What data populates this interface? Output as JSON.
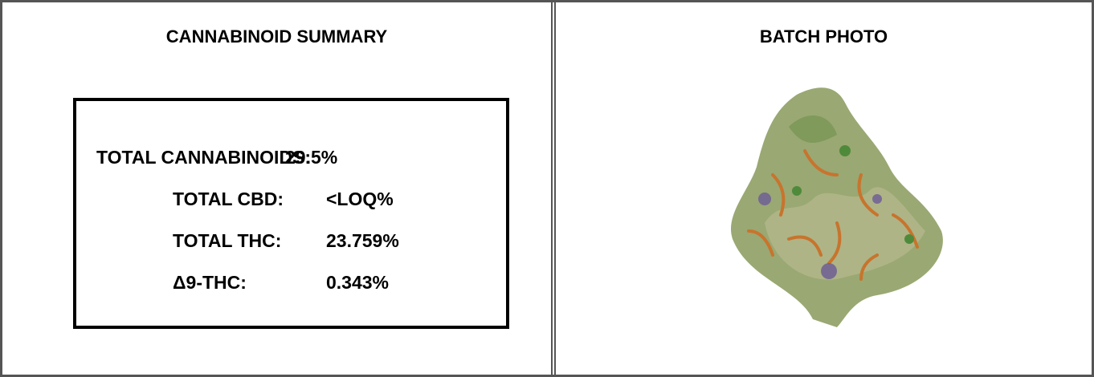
{
  "summary": {
    "title": "CANNABINOID SUMMARY",
    "rows": [
      {
        "label": "TOTAL CANNABINOIDS:",
        "value": "29.5%"
      },
      {
        "label": "TOTAL CBD:",
        "value": "<LOQ%"
      },
      {
        "label": "TOTAL THC:",
        "value": "23.759%"
      },
      {
        "label": "Δ9-THC:",
        "value": "0.343%"
      }
    ]
  },
  "photo": {
    "title": "BATCH PHOTO"
  }
}
